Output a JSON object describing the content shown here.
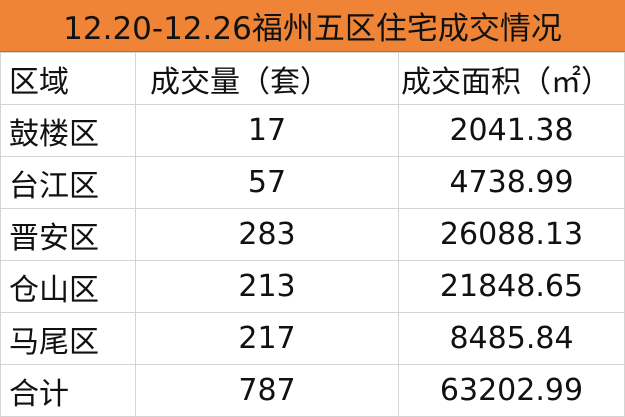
{
  "title": "12.20-12.26福州五区住宅成交情况",
  "colors": {
    "header_bg": "#ef8437"
  },
  "columns": [
    "区域",
    "成交量（套）",
    "成交面积（㎡）"
  ],
  "rows": [
    [
      "鼓楼区",
      "17",
      "2041.38"
    ],
    [
      "台江区",
      "57",
      "4738.99"
    ],
    [
      "晋安区",
      "283",
      "26088.13"
    ],
    [
      "仓山区",
      "213",
      "21848.65"
    ],
    [
      "马尾区",
      "217",
      "8485.84"
    ],
    [
      "合计",
      "787",
      "63202.99"
    ]
  ]
}
